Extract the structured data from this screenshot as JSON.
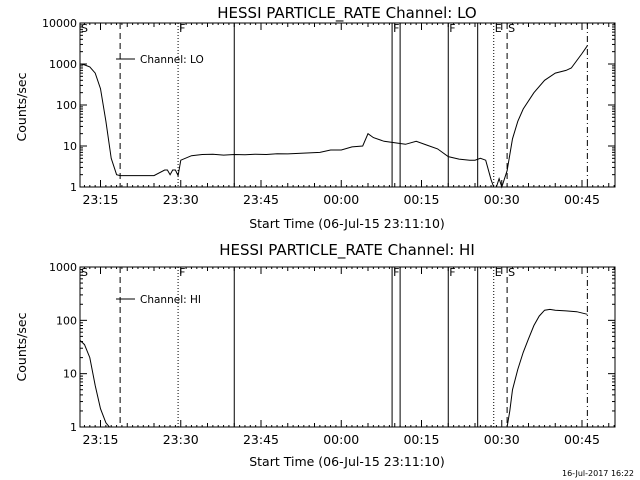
{
  "footer": {
    "timestamp": "16-Jul-2017 16:22"
  },
  "chart_data": [
    {
      "type": "line",
      "title": "HESSI PARTICLE_RATE Channel: LO",
      "xlabel": "Start Time (06-Jul-15 23:11:10)",
      "ylabel": "Counts/sec",
      "y_scale": "log",
      "ylim": [
        1,
        10000
      ],
      "xlim": [
        "23:11:10",
        "00:51:10"
      ],
      "x_ticks": [
        "23:15",
        "23:30",
        "23:45",
        "00:00",
        "00:15",
        "00:30",
        "00:45"
      ],
      "y_ticks": [
        "1",
        "10",
        "100",
        "1000",
        "10000"
      ],
      "legend": {
        "position": "top-left",
        "entries": [
          "Channel: LO"
        ]
      },
      "series": [
        {
          "name": "Channel: LO",
          "x": [
            "23:11:10",
            "23:12:00",
            "23:13:00",
            "23:14:00",
            "23:15:00",
            "23:16:00",
            "23:17:00",
            "23:18:00",
            "23:18:40",
            "23:20:00",
            "23:25:00",
            "23:27:00",
            "23:27:30",
            "23:28:00",
            "23:28:30",
            "23:29:00",
            "23:29:30",
            "23:30:00",
            "23:32:00",
            "23:34:00",
            "23:36:00",
            "23:38:00",
            "23:40:00",
            "23:42:00",
            "23:44:00",
            "23:46:00",
            "23:48:00",
            "23:50:00",
            "23:52:00",
            "23:54:00",
            "23:56:00",
            "23:58:00",
            "00:00:00",
            "00:02:00",
            "00:04:00",
            "00:05:00",
            "00:06:00",
            "00:08:00",
            "00:10:00",
            "00:12:00",
            "00:14:00",
            "00:16:00",
            "00:18:00",
            "00:20:00",
            "00:22:00",
            "00:24:00",
            "00:25:00",
            "00:26:00",
            "00:27:00",
            "00:28:00",
            "00:28:30",
            "00:29:00",
            "00:29:30",
            "00:30:00",
            "00:31:00",
            "00:32:00",
            "00:33:00",
            "00:34:00",
            "00:36:00",
            "00:38:00",
            "00:40:00",
            "00:42:00",
            "00:43:00",
            "00:45:00",
            "00:46:00"
          ],
          "y": [
            1000,
            950,
            850,
            600,
            250,
            40,
            5,
            2,
            1.9,
            1.9,
            1.9,
            2.6,
            2.6,
            2.0,
            2.6,
            2.6,
            1.9,
            4.5,
            5.8,
            6.2,
            6.3,
            6.0,
            6.2,
            6.1,
            6.3,
            6.2,
            6.5,
            6.4,
            6.6,
            6.8,
            7.0,
            8.0,
            8.0,
            9.5,
            10.0,
            20,
            16,
            13,
            12,
            11,
            13,
            10.5,
            8.5,
            5.5,
            4.8,
            4.5,
            4.5,
            5,
            4.5,
            1.5,
            1,
            1,
            1.6,
            1,
            2.5,
            15,
            40,
            80,
            200,
            400,
            600,
            700,
            800,
            1800,
            2800
          ]
        }
      ],
      "markers": [
        {
          "label": "S",
          "time": "23:11:10",
          "style": "dashdot"
        },
        {
          "label": "",
          "time": "23:18:40",
          "style": "dashed"
        },
        {
          "label": "F",
          "time": "23:29:30",
          "style": "dotted"
        },
        {
          "label": "",
          "time": "23:40:00",
          "style": "solid"
        },
        {
          "label": "F",
          "time": "00:09:30",
          "style": "solid"
        },
        {
          "label": "",
          "time": "00:11:00",
          "style": "solid"
        },
        {
          "label": "F",
          "time": "00:20:00",
          "style": "solid"
        },
        {
          "label": "",
          "time": "00:25:30",
          "style": "solid"
        },
        {
          "label": "E",
          "time": "00:28:30",
          "style": "dotted"
        },
        {
          "label": "S",
          "time": "00:31:00",
          "style": "dashed"
        },
        {
          "label": "",
          "time": "00:46:00",
          "style": "dashdot"
        }
      ]
    },
    {
      "type": "line",
      "title": "HESSI PARTICLE_RATE Channel: HI",
      "xlabel": "Start Time (06-Jul-15 23:11:10)",
      "ylabel": "Counts/sec",
      "y_scale": "log",
      "ylim": [
        1,
        1000
      ],
      "xlim": [
        "23:11:10",
        "00:51:10"
      ],
      "x_ticks": [
        "23:15",
        "23:30",
        "23:45",
        "00:00",
        "00:15",
        "00:30",
        "00:45"
      ],
      "y_ticks": [
        "1",
        "10",
        "100",
        "1000"
      ],
      "legend": {
        "position": "top-left",
        "entries": [
          "Channel: HI"
        ]
      },
      "series": [
        {
          "name": "Channel: HI",
          "x": [
            "23:11:10",
            "23:12:00",
            "23:13:00",
            "23:14:00",
            "23:15:00",
            "23:16:00",
            "23:16:40",
            "00:31:00",
            "00:31:30",
            "00:32:00",
            "00:33:00",
            "00:34:00",
            "00:35:00",
            "00:36:00",
            "00:37:00",
            "00:38:00",
            "00:39:00",
            "00:40:00",
            "00:42:00",
            "00:44:00",
            "00:46:00"
          ],
          "y": [
            42,
            35,
            20,
            6,
            2.2,
            1.2,
            1,
            1,
            2,
            5,
            12,
            25,
            45,
            80,
            120,
            155,
            160,
            155,
            150,
            145,
            130
          ]
        }
      ],
      "markers": [
        {
          "label": "S",
          "time": "23:11:10",
          "style": "dashdot"
        },
        {
          "label": "",
          "time": "23:18:40",
          "style": "dashed"
        },
        {
          "label": "F",
          "time": "23:29:30",
          "style": "dotted"
        },
        {
          "label": "",
          "time": "23:40:00",
          "style": "solid"
        },
        {
          "label": "F",
          "time": "00:09:30",
          "style": "solid"
        },
        {
          "label": "",
          "time": "00:11:00",
          "style": "solid"
        },
        {
          "label": "F",
          "time": "00:20:00",
          "style": "solid"
        },
        {
          "label": "",
          "time": "00:25:30",
          "style": "solid"
        },
        {
          "label": "E",
          "time": "00:28:30",
          "style": "dotted"
        },
        {
          "label": "S",
          "time": "00:31:00",
          "style": "dashed"
        },
        {
          "label": "",
          "time": "00:46:00",
          "style": "dashdot"
        }
      ]
    }
  ]
}
